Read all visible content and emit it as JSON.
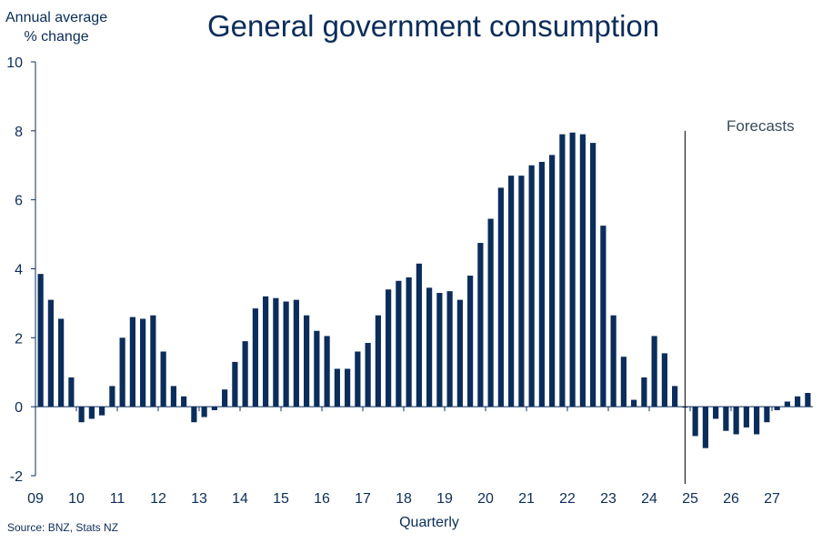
{
  "page": {
    "title": "General government consumption",
    "ylabel_line1": "Annual average",
    "ylabel_line2": "% change",
    "source": "Source: BNZ, Stats NZ"
  },
  "colors": {
    "bar": "#0b2d5b",
    "axis": "#0b2d5b",
    "text": "#0b2d5b"
  },
  "chart_data": {
    "type": "bar",
    "title": "General government consumption",
    "ylabel": "Annual average % change",
    "xlabel": "Quarterly",
    "ylim": [
      -2,
      10
    ],
    "yticks": [
      -2,
      0,
      2,
      4,
      6,
      8,
      10
    ],
    "grid": false,
    "x_tick_labels": [
      "09",
      "10",
      "11",
      "12",
      "13",
      "14",
      "15",
      "16",
      "17",
      "18",
      "19",
      "20",
      "21",
      "22",
      "23",
      "24",
      "25",
      "26",
      "27"
    ],
    "annotation": {
      "text": "Forecasts",
      "at_quarter": "2024Q4"
    },
    "quarters_start": "2009Q1",
    "series": [
      {
        "values": [
          3.85,
          3.1,
          2.55,
          0.85,
          -0.45,
          -0.35,
          -0.25,
          0.6,
          2.0,
          2.6,
          2.55,
          2.65,
          1.6,
          0.6,
          0.3,
          -0.45,
          -0.3,
          -0.1,
          0.5,
          1.3,
          1.9,
          2.85,
          3.2,
          3.15,
          3.05,
          3.1,
          2.65,
          2.2,
          2.05,
          1.1,
          1.1,
          1.6,
          1.85,
          2.65,
          3.4,
          3.65,
          3.75,
          4.15,
          3.45,
          3.3,
          3.35,
          3.1,
          3.8,
          4.75,
          5.45,
          6.35,
          6.7,
          6.7,
          7.0,
          7.1,
          7.3,
          7.9,
          7.95,
          7.9,
          7.65,
          5.25,
          2.65,
          1.45,
          0.2,
          0.85,
          2.05,
          1.55,
          0.6,
          0.0,
          -0.85,
          -1.2,
          -0.35,
          -0.7,
          -0.8,
          -0.6,
          -0.8,
          -0.45,
          -0.1,
          0.15,
          0.3,
          0.4
        ]
      }
    ]
  }
}
